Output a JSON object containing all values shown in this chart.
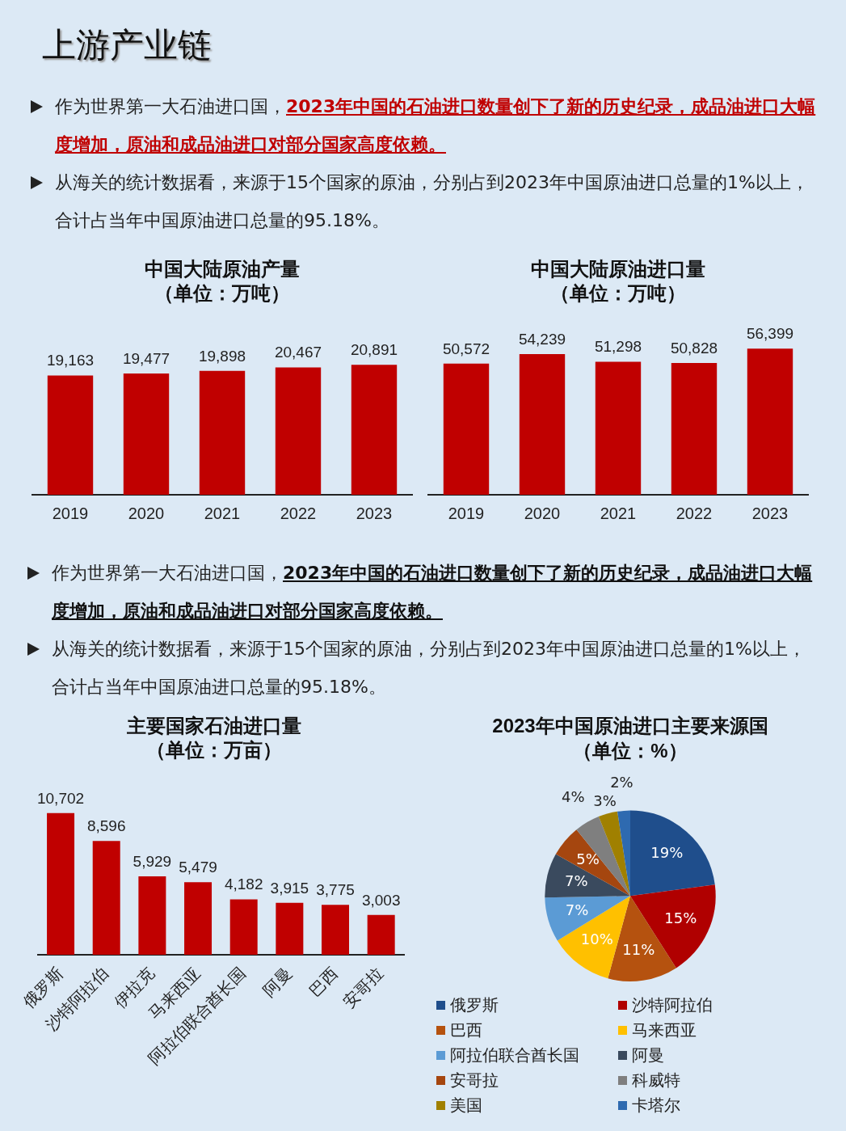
{
  "chart_data": [
    {
      "type": "bar",
      "title": "中国大陆原油产量",
      "subtitle": "（单位：万吨）",
      "categories": [
        "2019",
        "2020",
        "2021",
        "2022",
        "2023"
      ],
      "values": [
        19163,
        19477,
        19898,
        20467,
        20891
      ],
      "value_labels": [
        "19,163",
        "19,477",
        "19,898",
        "20,467",
        "20,891"
      ],
      "color": "#c00000",
      "grid": false,
      "legend": false,
      "annotations": [
        "上游产业链",
        "作为世界第一大石油进口国，",
        "2023年中国的石油进口数量创下了新的历史纪录，成品油进口大幅度增加，原油和成品油进口对部分国家高度依赖。",
        "从海关的统计数据看，来源于15个国家的原油，分别占到2023年中国原油进口总量的1%以上，合计占当年中国原油进口总量的95.18%。"
      ]
    },
    {
      "type": "bar",
      "title": "中国大陆原油进口量",
      "subtitle": "（单位：万吨）",
      "categories": [
        "2019",
        "2020",
        "2021",
        "2022",
        "2023"
      ],
      "values": [
        50572,
        54239,
        51298,
        50828,
        56399
      ],
      "value_labels": [
        "50,572",
        "54,239",
        "51,298",
        "50,828",
        "56,399"
      ],
      "color": "#c00000",
      "grid": false,
      "legend": false
    },
    {
      "type": "bar",
      "title": "主要国家石油进口量",
      "subtitle": "（单位：万亩）",
      "categories": [
        "俄罗斯",
        "沙特阿拉伯",
        "伊拉克",
        "马来西亚",
        "阿拉伯联合酋长国",
        "阿曼",
        "巴西",
        "安哥拉"
      ],
      "values": [
        10702,
        8596,
        5929,
        5479,
        4182,
        3915,
        3775,
        3003
      ],
      "value_labels": [
        "10,702",
        "8,596",
        "5,929",
        "5,479",
        "4,182",
        "3,915",
        "3,775",
        "3,003"
      ],
      "color": "#c00000",
      "grid": false,
      "legend": false,
      "annotations": [
        "作为世界第一大石油进口国，",
        "2023年中国的石油进口数量创下了新的历史纪录，成品油进口大幅度增加，原油和成品油进口对部分国家高度依赖。",
        "从海关的统计数据看，来源于15个国家的原油，分别占到2023年中国原油进口总量的1%以上，合计占当年中国原油进口总量的95.18%。"
      ]
    },
    {
      "type": "pie",
      "title": "2023年中国原油进口主要来源国",
      "subtitle": "（单位：%）",
      "categories": [
        "俄罗斯",
        "沙特阿拉伯",
        "巴西",
        "马来西亚",
        "阿拉伯联合酋长国",
        "阿曼",
        "安哥拉",
        "科威特",
        "美国",
        "卡塔尔"
      ],
      "values": [
        19,
        15,
        11,
        10,
        7,
        7,
        5,
        4,
        3,
        2
      ],
      "value_labels": [
        "19%",
        "15%",
        "11%",
        "10%",
        "7%",
        "7%",
        "5%",
        "4%",
        "3%",
        "2%"
      ],
      "colors": [
        "#1f4e8c",
        "#b00000",
        "#b5520f",
        "#ffc000",
        "#5b9bd5",
        "#3a4a5e",
        "#a5460f",
        "#7f7f7f",
        "#a08000",
        "#2e6ab0"
      ],
      "legend": "bottom"
    }
  ]
}
